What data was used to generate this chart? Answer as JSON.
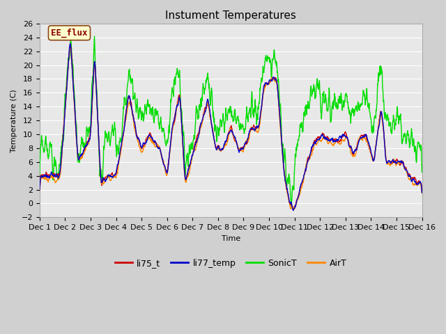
{
  "title": "Instument Temperatures",
  "ylabel": "Temperature (C)",
  "xlabel": "Time",
  "ylim": [
    -2,
    26
  ],
  "yticks": [
    -2,
    0,
    2,
    4,
    6,
    8,
    10,
    12,
    14,
    16,
    18,
    20,
    22,
    24,
    26
  ],
  "annotation_text": "EE_flux",
  "annotation_box_facecolor": "#ffffcc",
  "annotation_box_edgecolor": "#8b4513",
  "fig_facecolor": "#d0d0d0",
  "plot_facecolor": "#e8e8e8",
  "line_colors": {
    "li75_t": "#cc0000",
    "li77_temp": "#0000cc",
    "SonicT": "#00dd00",
    "AirT": "#ff8800"
  },
  "line_width": 1.0,
  "xtick_positions": [
    0,
    1,
    2,
    3,
    4,
    5,
    6,
    7,
    8,
    9,
    10,
    11,
    12,
    13,
    14,
    15
  ],
  "xtick_labels": [
    "Dec 1",
    "Dec 2",
    "Dec 3",
    "Dec 4",
    "Dec 5",
    "Dec 6",
    "Dec 7",
    "Dec 8",
    "Dec 9",
    "Dec 10",
    "Dec 11",
    "Dec 12",
    "Dec 13",
    "Dec 14",
    "Dec 15",
    "Dec 16"
  ],
  "title_fontsize": 11,
  "label_fontsize": 8,
  "tick_fontsize": 8,
  "legend_fontsize": 9,
  "annot_fontsize": 9
}
